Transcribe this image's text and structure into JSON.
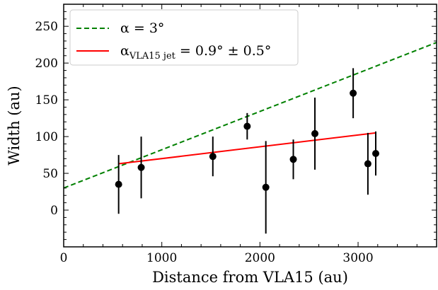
{
  "chart_data": {
    "type": "scatter",
    "xlabel": "Distance from VLA15 (au)",
    "ylabel": "Width (au)",
    "xlim": [
      0,
      3800
    ],
    "ylim": [
      -50,
      280
    ],
    "x_ticks": [
      0,
      1000,
      2000,
      3000
    ],
    "y_ticks": [
      0,
      50,
      100,
      150,
      200,
      250
    ],
    "x_minor_step": 200,
    "y_minor_step": 10,
    "grid": false,
    "legend_position": "top-left",
    "colors": {
      "points": "#000000",
      "model": "#008000",
      "fit": "#ff0000"
    },
    "points": [
      {
        "x": 560,
        "y": 35,
        "yerr": 40
      },
      {
        "x": 790,
        "y": 58,
        "yerr": 42
      },
      {
        "x": 1520,
        "y": 73,
        "yerr": 27
      },
      {
        "x": 1870,
        "y": 114,
        "yerr": 18
      },
      {
        "x": 2060,
        "y": 31,
        "yerr": 63
      },
      {
        "x": 2340,
        "y": 69,
        "yerr": 27
      },
      {
        "x": 2560,
        "y": 104,
        "yerr": 49
      },
      {
        "x": 2950,
        "y": 159,
        "yerr": 34
      },
      {
        "x": 3100,
        "y": 63,
        "yerr": 42
      },
      {
        "x": 3180,
        "y": 77,
        "yerr": 30
      }
    ],
    "lines": [
      {
        "style": "dashed",
        "color": "#008000",
        "x": [
          0,
          3800
        ],
        "y": [
          30,
          228
        ],
        "legend": {
          "main": "α = 3°",
          "sub": "",
          "suffix": ""
        }
      },
      {
        "style": "solid",
        "color": "#ff0000",
        "x": [
          560,
          3180
        ],
        "y": [
          63,
          105
        ],
        "legend": {
          "main": "α",
          "sub": "VLA15 jet",
          "suffix": " = 0.9° ± 0.5°"
        }
      }
    ]
  }
}
